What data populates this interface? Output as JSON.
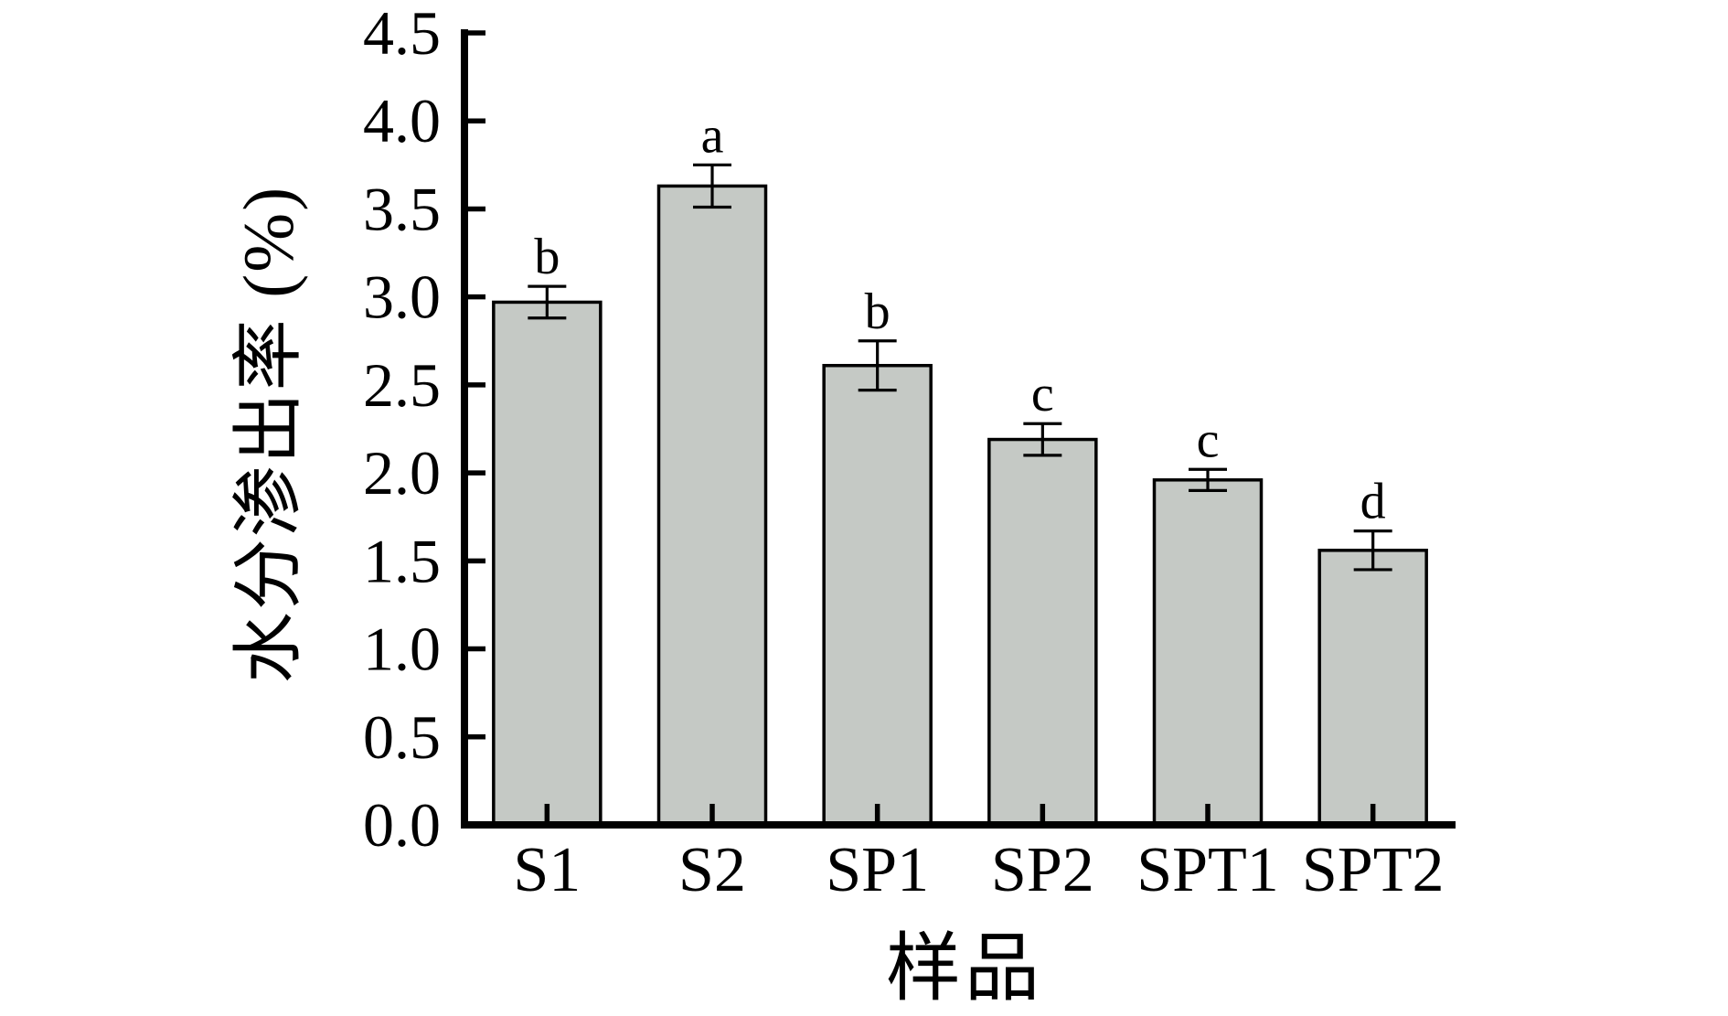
{
  "chart_data": {
    "type": "bar",
    "title": "",
    "xlabel": "样品",
    "ylabel": "水分渗出率 (%)",
    "categories": [
      "S1",
      "S2",
      "SP1",
      "SP2",
      "SPT1",
      "SPT2"
    ],
    "values": [
      2.97,
      3.63,
      2.61,
      2.19,
      1.96,
      1.56
    ],
    "errors": [
      0.09,
      0.12,
      0.14,
      0.09,
      0.06,
      0.11
    ],
    "sig_letters": [
      "b",
      "a",
      "b",
      "c",
      "c",
      "d"
    ],
    "ylim": [
      0,
      4.5
    ],
    "ytick_step": 0.5,
    "ytick_labels": [
      "0.0",
      "0.5",
      "1.0",
      "1.5",
      "2.0",
      "2.5",
      "3.0",
      "3.5",
      "4.0",
      "4.5"
    ],
    "grid": false,
    "legend": null,
    "colors": {
      "bar_fill": "#c5c9c5",
      "bar_stroke": "#000000",
      "axis": "#000000",
      "background": "#ffffff"
    }
  }
}
